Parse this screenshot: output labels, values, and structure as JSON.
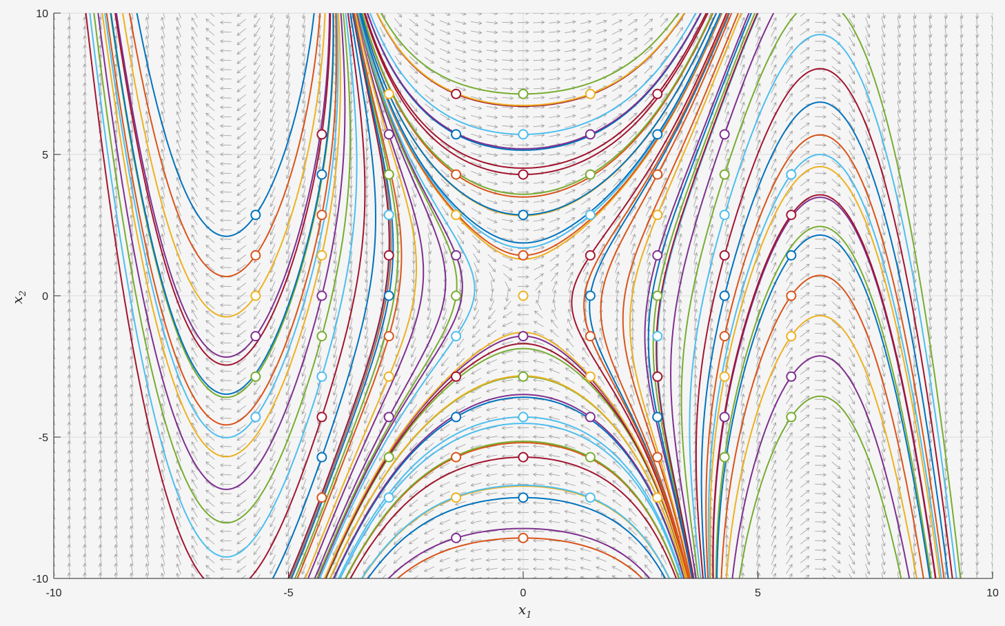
{
  "chart_data": {
    "type": "phase-portrait",
    "title": "",
    "xlabel": "x",
    "xlabel_sub": "1",
    "ylabel": "x",
    "ylabel_sub": "2",
    "xlim": [
      -10,
      10
    ],
    "ylim": [
      -10,
      10
    ],
    "xticks": [
      -10,
      -5,
      0,
      5,
      10
    ],
    "yticks": [
      -10,
      -5,
      0,
      5,
      10
    ],
    "xtick_labels": [
      "-10",
      "-5",
      "0",
      "5",
      "10"
    ],
    "ytick_labels": [
      "-10",
      "-5",
      "0",
      "5",
      "10"
    ],
    "grid": true,
    "quiver_color": "#9e9e9e",
    "series_colors": [
      "#0072BD",
      "#D95319",
      "#EDB120",
      "#7E2F8E",
      "#77AC30",
      "#4DBEEE",
      "#A2142F"
    ],
    "initial_points": [
      [
        -5.7,
        2.86
      ],
      [
        -5.7,
        1.43
      ],
      [
        -5.7,
        0
      ],
      [
        -5.7,
        -1.43
      ],
      [
        -5.7,
        -2.86
      ],
      [
        -5.7,
        -4.29
      ],
      [
        -4.29,
        5.71
      ],
      [
        -4.29,
        4.29
      ],
      [
        -4.29,
        2.86
      ],
      [
        -4.29,
        1.43
      ],
      [
        -4.29,
        0
      ],
      [
        -4.29,
        -1.43
      ],
      [
        -4.29,
        -2.86
      ],
      [
        -4.29,
        -4.29
      ],
      [
        -4.29,
        -5.71
      ],
      [
        -4.29,
        -7.14
      ],
      [
        -2.86,
        7.14
      ],
      [
        -2.86,
        5.71
      ],
      [
        -2.86,
        4.29
      ],
      [
        -2.86,
        2.86
      ],
      [
        -2.86,
        1.43
      ],
      [
        -2.86,
        0
      ],
      [
        -2.86,
        -1.43
      ],
      [
        -2.86,
        -2.86
      ],
      [
        -2.86,
        -4.29
      ],
      [
        -2.86,
        -5.71
      ],
      [
        -2.86,
        -7.14
      ],
      [
        -1.43,
        7.14
      ],
      [
        -1.43,
        5.71
      ],
      [
        -1.43,
        4.29
      ],
      [
        -1.43,
        2.86
      ],
      [
        -1.43,
        1.43
      ],
      [
        -1.43,
        0
      ],
      [
        -1.43,
        -1.43
      ],
      [
        -1.43,
        -2.86
      ],
      [
        -1.43,
        -4.29
      ],
      [
        -1.43,
        -5.71
      ],
      [
        -1.43,
        -7.14
      ],
      [
        -1.43,
        -8.57
      ],
      [
        0,
        7.14
      ],
      [
        0,
        5.71
      ],
      [
        0,
        4.29
      ],
      [
        0,
        2.86
      ],
      [
        0,
        1.43
      ],
      [
        0,
        0
      ],
      [
        0,
        -1.43
      ],
      [
        0,
        -2.86
      ],
      [
        0,
        -4.29
      ],
      [
        0,
        -5.71
      ],
      [
        0,
        -7.14
      ],
      [
        0,
        -8.57
      ],
      [
        1.43,
        7.14
      ],
      [
        1.43,
        5.71
      ],
      [
        1.43,
        4.29
      ],
      [
        1.43,
        2.86
      ],
      [
        1.43,
        1.43
      ],
      [
        1.43,
        0
      ],
      [
        1.43,
        -1.43
      ],
      [
        1.43,
        -2.86
      ],
      [
        1.43,
        -4.29
      ],
      [
        1.43,
        -5.71
      ],
      [
        1.43,
        -7.14
      ],
      [
        2.86,
        7.14
      ],
      [
        2.86,
        5.71
      ],
      [
        2.86,
        4.29
      ],
      [
        2.86,
        2.86
      ],
      [
        2.86,
        1.43
      ],
      [
        2.86,
        0
      ],
      [
        2.86,
        -1.43
      ],
      [
        2.86,
        -2.86
      ],
      [
        2.86,
        -4.29
      ],
      [
        2.86,
        -5.71
      ],
      [
        2.86,
        -7.14
      ],
      [
        4.29,
        5.71
      ],
      [
        4.29,
        4.29
      ],
      [
        4.29,
        2.86
      ],
      [
        4.29,
        1.43
      ],
      [
        4.29,
        0
      ],
      [
        4.29,
        -1.43
      ],
      [
        4.29,
        -2.86
      ],
      [
        4.29,
        -4.29
      ],
      [
        4.29,
        -5.71
      ],
      [
        5.71,
        4.29
      ],
      [
        5.71,
        2.86
      ],
      [
        5.71,
        1.43
      ],
      [
        5.71,
        0
      ],
      [
        5.71,
        -1.43
      ],
      [
        5.71,
        -2.86
      ],
      [
        5.71,
        -4.29
      ]
    ]
  }
}
